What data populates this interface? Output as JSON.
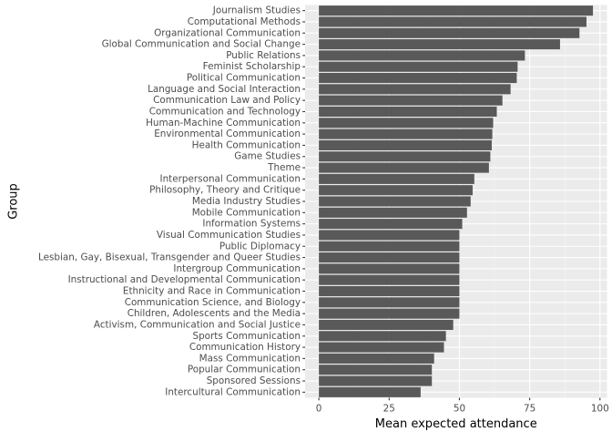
{
  "chart_data": {
    "type": "bar",
    "orientation": "horizontal",
    "title": "",
    "xlabel": "Mean expected attendance",
    "ylabel": "Group",
    "xlim": [
      -4.9,
      102.5
    ],
    "xticks": [
      "0",
      "25",
      "50",
      "75",
      "100"
    ],
    "grid": true,
    "legend": "none",
    "colors": {
      "panel": "#ebebeb",
      "grid_major": "#ffffff",
      "grid_minor": "#f5f5f5",
      "bar": "#595959",
      "tick_text": "#4d4d4d",
      "tick_mark": "#333333"
    },
    "categories": [
      "Journalism Studies",
      "Computational Methods",
      "Organizational Communication",
      "Global Communication and Social Change",
      "Public Relations",
      "Feminist Scholarship",
      "Political Communication",
      "Language and Social Interaction",
      "Communication Law and Policy",
      "Communication and Technology",
      "Human-Machine Communication",
      "Environmental Communication",
      "Health Communication",
      "Game Studies",
      "Theme",
      "Interpersonal Communication",
      "Philosophy, Theory and Critique",
      "Media Industry Studies",
      "Mobile Communication",
      "Information Systems",
      "Visual Communication Studies",
      "Public Diplomacy",
      "Lesbian, Gay, Bisexual, Transgender and Queer Studies",
      "Intergroup Communication",
      "Instructional and Developmental Communication",
      "Ethnicity and Race in Communication",
      "Communication Science, and Biology",
      "Children, Adolescents and the Media",
      "Activism, Communication and Social Justice",
      "Sports Communication",
      "Communication History",
      "Mass Communication",
      "Popular Communication",
      "Sponsored Sessions",
      "Intercultural Communication"
    ],
    "values": [
      97.5,
      95.2,
      92.7,
      85.8,
      73.3,
      70.7,
      70.4,
      68.2,
      65.3,
      63.3,
      62.0,
      61.7,
      61.5,
      61.0,
      60.5,
      55.3,
      54.7,
      54.0,
      52.7,
      51.0,
      50.0,
      50.0,
      50.0,
      50.0,
      50.0,
      50.0,
      50.0,
      50.0,
      47.8,
      45.2,
      44.5,
      41.0,
      40.2,
      40.2,
      36.2
    ]
  }
}
